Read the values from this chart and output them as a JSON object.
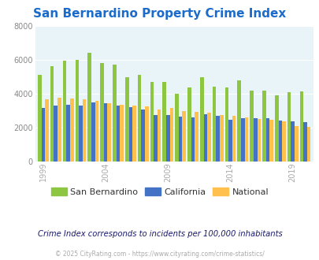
{
  "title": "San Bernardino Property Crime Index",
  "title_color": "#1a6bcc",
  "years": [
    1999,
    2000,
    2001,
    2002,
    2003,
    2004,
    2005,
    2006,
    2007,
    2008,
    2009,
    2010,
    2011,
    2012,
    2013,
    2014,
    2015,
    2016,
    2017,
    2018,
    2019,
    2020
  ],
  "san_bernardino": [
    5100,
    5600,
    5950,
    6000,
    6400,
    5800,
    5700,
    4950,
    5100,
    4700,
    4700,
    4000,
    4350,
    4950,
    4400,
    4350,
    4800,
    4200,
    4200,
    3900,
    4100,
    4150
  ],
  "california": [
    3150,
    3300,
    3350,
    3300,
    3500,
    3450,
    3300,
    3200,
    3050,
    2750,
    2750,
    2650,
    2600,
    2800,
    2700,
    2450,
    2550,
    2550,
    2550,
    2400,
    2350,
    2300
  ],
  "national": [
    3650,
    3750,
    3700,
    3650,
    3550,
    3450,
    3350,
    3300,
    3250,
    3050,
    3150,
    2950,
    2900,
    2850,
    2750,
    2700,
    2600,
    2500,
    2450,
    2350,
    2100,
    2050
  ],
  "bar_colors": [
    "#8dc641",
    "#4472c4",
    "#ffc04d"
  ],
  "plot_bg": "#e8f4f8",
  "ylim": [
    0,
    8000
  ],
  "yticks": [
    0,
    2000,
    4000,
    6000,
    8000
  ],
  "xlabel_ticks": [
    1999,
    2004,
    2009,
    2014,
    2019
  ],
  "legend_labels": [
    "San Bernardino",
    "California",
    "National"
  ],
  "subtitle": "Crime Index corresponds to incidents per 100,000 inhabitants",
  "subtitle_color": "#1a1a6e",
  "footer": "© 2025 CityRating.com - https://www.cityrating.com/crime-statistics/",
  "footer_color": "#aaaaaa",
  "grid_color": "#ffffff"
}
